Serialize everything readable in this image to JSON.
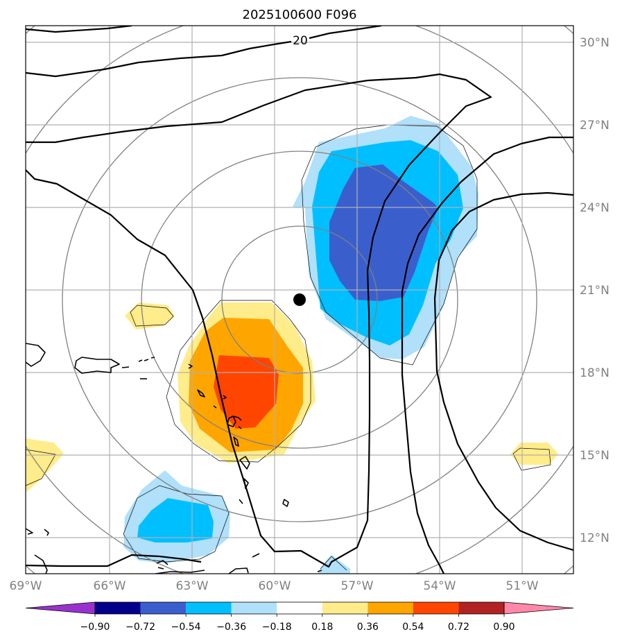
{
  "title": "2025100600 F096",
  "map": {
    "lon_range": [
      -69,
      -49.7
    ],
    "lat_range": [
      10.8,
      30.5
    ],
    "lon_ticks": [
      {
        "value": -69,
        "label": "69°W"
      },
      {
        "value": -66,
        "label": "66°W"
      },
      {
        "value": -63,
        "label": "63°W"
      },
      {
        "value": -60,
        "label": "60°W"
      },
      {
        "value": -57,
        "label": "57°W"
      },
      {
        "value": -54,
        "label": "54°W"
      },
      {
        "value": -51,
        "label": "51°W"
      }
    ],
    "lat_ticks": [
      {
        "value": 30,
        "label": "30°N"
      },
      {
        "value": 27,
        "label": "27°N"
      },
      {
        "value": 24,
        "label": "24°N"
      },
      {
        "value": 21,
        "label": "21°N"
      },
      {
        "value": 18,
        "label": "18°N"
      },
      {
        "value": 15,
        "label": "15°N"
      },
      {
        "value": 12,
        "label": "12°N"
      }
    ],
    "center_marker": {
      "lon": -58.9,
      "lat": 20.6
    },
    "contour_label": "20"
  },
  "colorbar": {
    "ticks": [
      "−0.90",
      "−0.72",
      "−0.54",
      "−0.36",
      "−0.18",
      "0.18",
      "0.36",
      "0.54",
      "0.72",
      "0.90"
    ],
    "colors": [
      "#9932cc",
      "#00008b",
      "#3a5fcd",
      "#00bfff",
      "#b0e0fa",
      "#ffffff",
      "#ffec8b",
      "#ffa500",
      "#ff4500",
      "#b22222",
      "#ff88aa"
    ]
  },
  "colors": {
    "neg_light": "#b0e0fa",
    "neg_mid": "#00bfff",
    "neg_dark": "#3a5fcd",
    "pos_light": "#ffec8b",
    "pos_mid": "#ffa500",
    "pos_dark": "#ff4500"
  }
}
